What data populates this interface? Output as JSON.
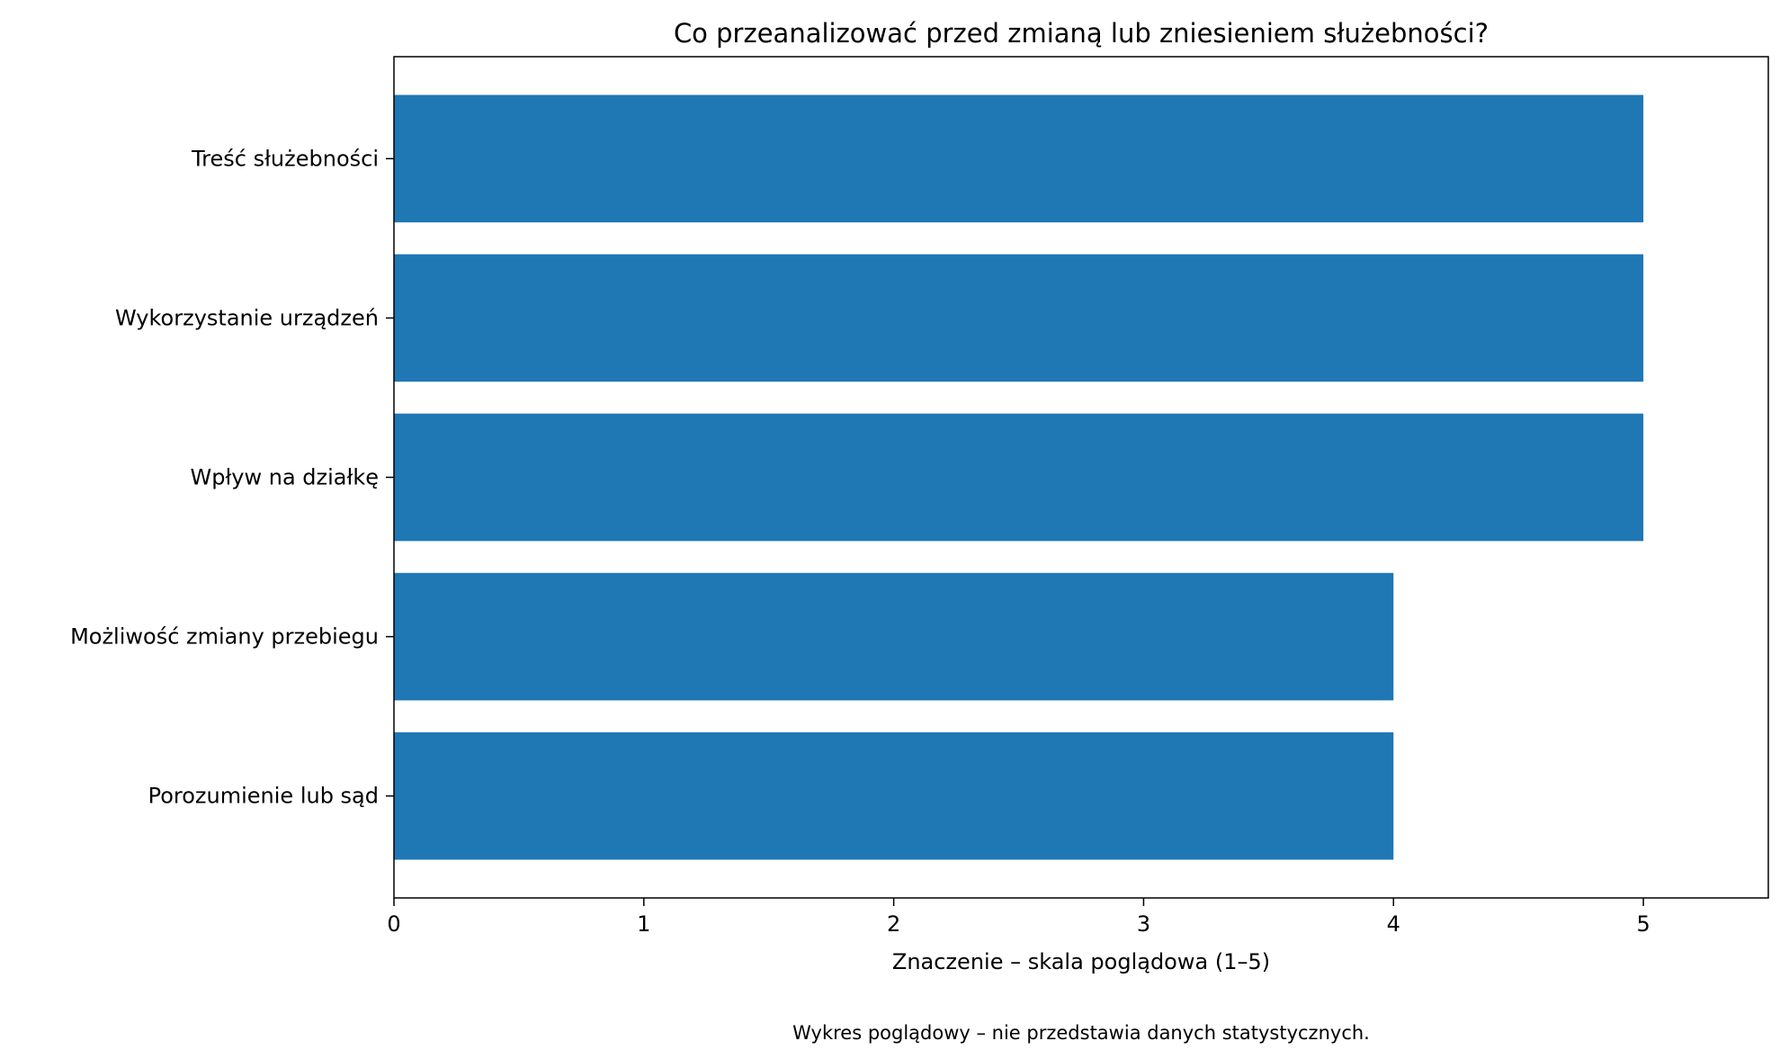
{
  "chart_data": {
    "type": "bar",
    "orientation": "horizontal",
    "title": "Co przeanalizować przed zmianą lub zniesieniem służebności?",
    "xlabel": "Znaczenie – skala poglądowa (1–5)",
    "ylabel": "",
    "categories": [
      "Treść służebności",
      "Wykorzystanie urządzeń",
      "Wpływ na działkę",
      "Możliwość zmiany przebiegu",
      "Porozumienie lub sąd"
    ],
    "values": [
      5,
      5,
      5,
      4,
      4
    ],
    "xlim": [
      0,
      5.5
    ],
    "xticks": [
      0,
      1,
      2,
      3,
      4,
      5
    ],
    "grid": false,
    "legend": "none",
    "bar_color": "#1f77b4",
    "note": "Wykres poglądowy – nie przedstawia danych statystycznych."
  }
}
